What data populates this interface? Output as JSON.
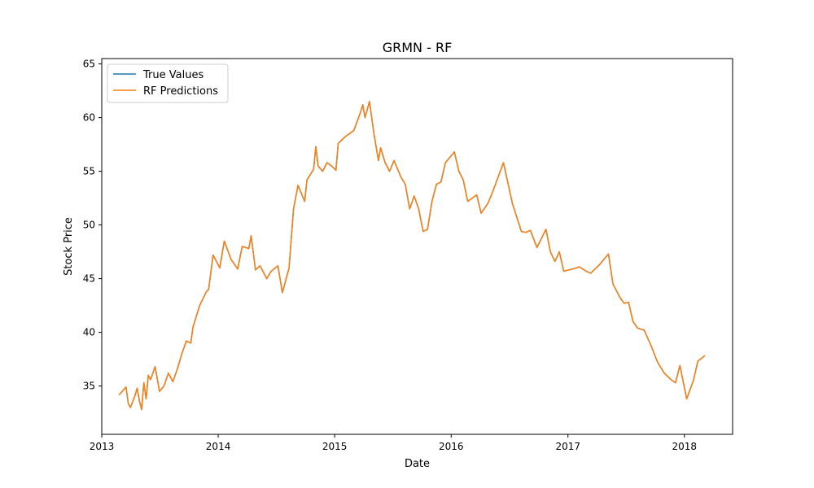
{
  "chart_data": {
    "type": "line",
    "title": "GRMN - RF",
    "xlabel": "Date",
    "ylabel": "Stock Price",
    "xlim": [
      "2013-01-01",
      "2018-06-01"
    ],
    "ylim": [
      30.5,
      65.5
    ],
    "x_ticks": [
      "2013-01-01",
      "2014-01-01",
      "2015-01-01",
      "2016-01-01",
      "2017-01-01",
      "2018-01-01"
    ],
    "x_tick_labels": [
      "2013",
      "2014",
      "2015",
      "2016",
      "2017",
      "2018"
    ],
    "y_ticks": [
      35,
      40,
      45,
      50,
      55,
      60,
      65
    ],
    "grid": false,
    "legend_position": "top-left",
    "series": [
      {
        "name": "True Values",
        "color": "#1f77b4",
        "points": [
          [
            "2013-02-25",
            34.2
          ],
          [
            "2013-03-18",
            34.9
          ],
          [
            "2013-03-25",
            33.4
          ],
          [
            "2013-04-01",
            33.0
          ],
          [
            "2013-04-15",
            34.1
          ],
          [
            "2013-04-22",
            34.8
          ],
          [
            "2013-04-29",
            33.6
          ],
          [
            "2013-05-06",
            32.8
          ],
          [
            "2013-05-13",
            35.3
          ],
          [
            "2013-05-20",
            33.8
          ],
          [
            "2013-05-27",
            36.0
          ],
          [
            "2013-06-03",
            35.6
          ],
          [
            "2013-06-17",
            36.8
          ],
          [
            "2013-07-01",
            34.5
          ],
          [
            "2013-07-15",
            35.0
          ],
          [
            "2013-07-29",
            36.2
          ],
          [
            "2013-08-12",
            35.4
          ],
          [
            "2013-08-26",
            36.6
          ],
          [
            "2013-09-09",
            38.0
          ],
          [
            "2013-09-23",
            39.2
          ],
          [
            "2013-10-07",
            39.0
          ],
          [
            "2013-10-14",
            40.5
          ],
          [
            "2013-11-04",
            42.5
          ],
          [
            "2013-11-25",
            43.8
          ],
          [
            "2013-12-02",
            44.0
          ],
          [
            "2013-12-16",
            47.2
          ],
          [
            "2014-01-06",
            46.0
          ],
          [
            "2014-01-20",
            48.5
          ],
          [
            "2014-02-10",
            46.8
          ],
          [
            "2014-03-03",
            45.9
          ],
          [
            "2014-03-17",
            48.0
          ],
          [
            "2014-04-07",
            47.8
          ],
          [
            "2014-04-14",
            49.0
          ],
          [
            "2014-04-28",
            45.8
          ],
          [
            "2014-05-12",
            46.2
          ],
          [
            "2014-06-02",
            45.0
          ],
          [
            "2014-06-16",
            45.7
          ],
          [
            "2014-07-07",
            46.2
          ],
          [
            "2014-07-21",
            43.7
          ],
          [
            "2014-08-11",
            46.0
          ],
          [
            "2014-08-25",
            51.5
          ],
          [
            "2014-09-08",
            53.7
          ],
          [
            "2014-09-29",
            52.2
          ],
          [
            "2014-10-06",
            54.2
          ],
          [
            "2014-10-27",
            55.2
          ],
          [
            "2014-11-03",
            57.3
          ],
          [
            "2014-11-10",
            55.5
          ],
          [
            "2014-11-24",
            55.0
          ],
          [
            "2014-12-08",
            55.8
          ],
          [
            "2014-12-22",
            55.5
          ],
          [
            "2015-01-05",
            55.1
          ],
          [
            "2015-01-12",
            57.6
          ],
          [
            "2015-02-02",
            58.2
          ],
          [
            "2015-03-02",
            58.8
          ],
          [
            "2015-03-23",
            60.5
          ],
          [
            "2015-03-30",
            61.2
          ],
          [
            "2015-04-06",
            60.0
          ],
          [
            "2015-04-20",
            61.5
          ],
          [
            "2015-05-04",
            58.5
          ],
          [
            "2015-05-18",
            56.0
          ],
          [
            "2015-05-25",
            57.2
          ],
          [
            "2015-06-08",
            55.8
          ],
          [
            "2015-06-22",
            55.0
          ],
          [
            "2015-07-06",
            56.0
          ],
          [
            "2015-07-27",
            54.5
          ],
          [
            "2015-08-10",
            53.8
          ],
          [
            "2015-08-24",
            51.5
          ],
          [
            "2015-09-07",
            52.7
          ],
          [
            "2015-09-21",
            51.5
          ],
          [
            "2015-10-05",
            49.4
          ],
          [
            "2015-10-19",
            49.6
          ],
          [
            "2015-11-02",
            52.2
          ],
          [
            "2015-11-16",
            53.8
          ],
          [
            "2015-11-30",
            54.0
          ],
          [
            "2015-12-14",
            55.8
          ],
          [
            "2015-12-28",
            56.3
          ],
          [
            "2016-01-11",
            56.8
          ],
          [
            "2016-01-25",
            55.0
          ],
          [
            "2016-02-08",
            54.2
          ],
          [
            "2016-02-22",
            52.2
          ],
          [
            "2016-03-07",
            52.5
          ],
          [
            "2016-03-21",
            52.8
          ],
          [
            "2016-04-04",
            51.1
          ],
          [
            "2016-04-25",
            52.0
          ],
          [
            "2016-05-09",
            53.0
          ],
          [
            "2016-06-13",
            55.8
          ],
          [
            "2016-07-11",
            52.0
          ],
          [
            "2016-08-08",
            49.4
          ],
          [
            "2016-08-22",
            49.3
          ],
          [
            "2016-09-05",
            49.5
          ],
          [
            "2016-09-26",
            47.9
          ],
          [
            "2016-10-24",
            49.6
          ],
          [
            "2016-11-07",
            47.5
          ],
          [
            "2016-11-21",
            46.6
          ],
          [
            "2016-12-05",
            47.5
          ],
          [
            "2016-12-19",
            45.7
          ],
          [
            "2017-01-16",
            45.9
          ],
          [
            "2017-02-06",
            46.1
          ],
          [
            "2017-02-27",
            45.7
          ],
          [
            "2017-03-13",
            45.5
          ],
          [
            "2017-03-27",
            45.9
          ],
          [
            "2017-04-10",
            46.3
          ],
          [
            "2017-05-08",
            47.3
          ],
          [
            "2017-05-22",
            44.5
          ],
          [
            "2017-06-12",
            43.3
          ],
          [
            "2017-06-26",
            42.7
          ],
          [
            "2017-07-10",
            42.8
          ],
          [
            "2017-07-24",
            41.0
          ],
          [
            "2017-08-07",
            40.4
          ],
          [
            "2017-08-28",
            40.2
          ],
          [
            "2017-09-18",
            38.8
          ],
          [
            "2017-10-09",
            37.2
          ],
          [
            "2017-10-30",
            36.2
          ],
          [
            "2017-11-20",
            35.6
          ],
          [
            "2017-12-04",
            35.3
          ],
          [
            "2017-12-18",
            36.9
          ],
          [
            "2018-01-08",
            33.8
          ],
          [
            "2018-01-29",
            35.5
          ],
          [
            "2018-02-12",
            37.3
          ],
          [
            "2018-03-05",
            37.8
          ]
        ]
      },
      {
        "name": "RF Predictions",
        "color": "#ff7f0e",
        "points": []
      }
    ]
  }
}
